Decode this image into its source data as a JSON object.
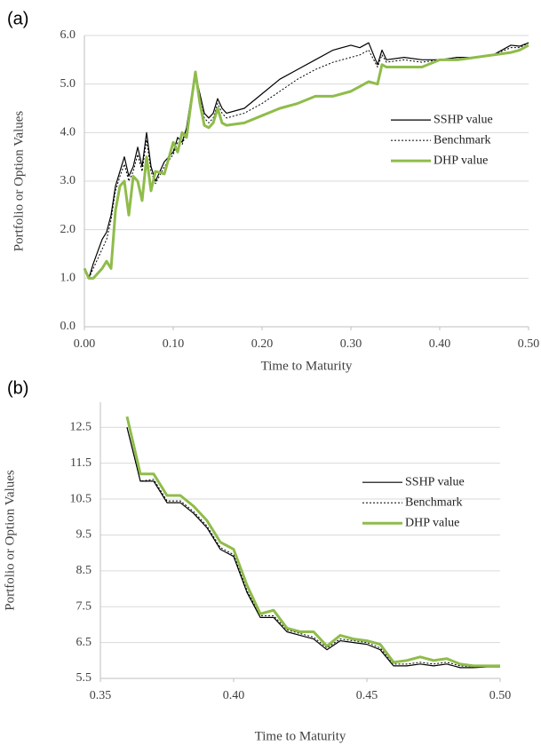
{
  "chart_data": [
    {
      "type": "line",
      "panel_label": "(a)",
      "x_label": "Time to Maturity",
      "y_label": "Portfolio or Option Values",
      "xlim": [
        0,
        0.5
      ],
      "ylim": [
        0,
        6
      ],
      "xticks": [
        {
          "value": 0,
          "label": "0.00"
        },
        {
          "value": 0.1,
          "label": "0.10"
        },
        {
          "value": 0.2,
          "label": "0.20"
        },
        {
          "value": 0.3,
          "label": "0.30"
        },
        {
          "value": 0.4,
          "label": "0.40"
        },
        {
          "value": 0.5,
          "label": "0.50"
        }
      ],
      "yticks": [
        {
          "value": 0,
          "label": "0.0"
        },
        {
          "value": 1,
          "label": "1.0"
        },
        {
          "value": 2,
          "label": "2.0"
        },
        {
          "value": 3,
          "label": "3.0"
        },
        {
          "value": 4,
          "label": "4.0"
        },
        {
          "value": 5,
          "label": "5.0"
        },
        {
          "value": 6,
          "label": "6.0"
        }
      ],
      "grid": true,
      "legend": "right",
      "x": [
        0,
        0.005,
        0.01,
        0.02,
        0.025,
        0.03,
        0.035,
        0.04,
        0.045,
        0.05,
        0.055,
        0.06,
        0.065,
        0.07,
        0.075,
        0.08,
        0.09,
        0.1,
        0.105,
        0.11,
        0.115,
        0.12,
        0.125,
        0.13,
        0.135,
        0.14,
        0.145,
        0.15,
        0.155,
        0.16,
        0.18,
        0.2,
        0.22,
        0.24,
        0.26,
        0.28,
        0.3,
        0.31,
        0.32,
        0.33,
        0.335,
        0.34,
        0.36,
        0.38,
        0.4,
        0.42,
        0.44,
        0.46,
        0.48,
        0.49,
        0.5
      ],
      "series": [
        {
          "name": "SSHP value",
          "color": "#000000",
          "line_width": 1.2,
          "dash": false,
          "values": [
            1.2,
            1.0,
            1.3,
            1.8,
            1.95,
            2.3,
            2.9,
            3.2,
            3.5,
            3.1,
            3.3,
            3.7,
            3.3,
            4.0,
            3.3,
            3.0,
            3.4,
            3.6,
            3.9,
            3.8,
            4.1,
            4.7,
            5.2,
            4.8,
            4.4,
            4.3,
            4.4,
            4.7,
            4.5,
            4.4,
            4.5,
            4.8,
            5.1,
            5.3,
            5.5,
            5.7,
            5.8,
            5.75,
            5.85,
            5.4,
            5.7,
            5.5,
            5.55,
            5.5,
            5.5,
            5.55,
            5.55,
            5.6,
            5.8,
            5.78,
            5.85
          ]
        },
        {
          "name": "Benchmark",
          "color": "#000000",
          "line_width": 1,
          "dash": true,
          "values": [
            1.2,
            1.0,
            1.2,
            1.6,
            1.8,
            2.2,
            2.8,
            3.1,
            3.35,
            3.0,
            3.2,
            3.55,
            3.2,
            3.85,
            3.2,
            2.95,
            3.3,
            3.55,
            3.8,
            3.75,
            4.0,
            4.6,
            5.15,
            4.7,
            4.3,
            4.2,
            4.3,
            4.6,
            4.4,
            4.3,
            4.4,
            4.6,
            4.85,
            5.1,
            5.3,
            5.45,
            5.55,
            5.6,
            5.7,
            5.35,
            5.6,
            5.45,
            5.5,
            5.45,
            5.5,
            5.55,
            5.55,
            5.6,
            5.75,
            5.75,
            5.85
          ]
        },
        {
          "name": "DHP value",
          "color": "#8fbc4a",
          "line_width": 3,
          "dash": false,
          "values": [
            1.2,
            1.0,
            1.0,
            1.2,
            1.35,
            1.2,
            2.4,
            2.9,
            3.0,
            2.3,
            3.1,
            3.0,
            2.6,
            3.5,
            2.8,
            3.2,
            3.15,
            3.8,
            3.6,
            4.0,
            3.9,
            4.6,
            5.25,
            4.6,
            4.15,
            4.1,
            4.2,
            4.5,
            4.2,
            4.15,
            4.2,
            4.35,
            4.5,
            4.6,
            4.75,
            4.75,
            4.85,
            4.95,
            5.05,
            5.0,
            5.4,
            5.35,
            5.35,
            5.35,
            5.5,
            5.5,
            5.55,
            5.6,
            5.65,
            5.7,
            5.8
          ]
        }
      ]
    },
    {
      "type": "line",
      "panel_label": "(b)",
      "x_label": "Time to Maturity",
      "y_label": "Portfolio or Option Values",
      "xlim": [
        0.35,
        0.5
      ],
      "ylim": [
        5.5,
        13.2
      ],
      "xticks": [
        0.35,
        {
          "value": 0.4,
          "label": "0.40"
        },
        0.45,
        {
          "value": 0.5,
          "label": "0.50"
        }
      ],
      "yticks": [
        5.5,
        6.5,
        7.5,
        8.5,
        9.5,
        10.5,
        11.5,
        12.5
      ],
      "grid": true,
      "legend": "right",
      "x": [
        0.36,
        0.365,
        0.37,
        0.375,
        0.38,
        0.385,
        0.39,
        0.395,
        0.4,
        0.405,
        0.41,
        0.415,
        0.42,
        0.425,
        0.43,
        0.435,
        0.44,
        0.445,
        0.45,
        0.455,
        0.46,
        0.465,
        0.47,
        0.475,
        0.48,
        0.485,
        0.49,
        0.495,
        0.5
      ],
      "series": [
        {
          "name": "SSHP value",
          "color": "#000000",
          "line_width": 1.2,
          "dash": false,
          "values": [
            12.5,
            11.0,
            11.0,
            10.4,
            10.4,
            10.1,
            9.7,
            9.1,
            8.9,
            7.9,
            7.2,
            7.2,
            6.8,
            6.7,
            6.6,
            6.3,
            6.55,
            6.5,
            6.45,
            6.3,
            5.85,
            5.85,
            5.9,
            5.85,
            5.9,
            5.8,
            5.8,
            5.82,
            5.82
          ]
        },
        {
          "name": "Benchmark",
          "color": "#000000",
          "line_width": 1,
          "dash": true,
          "values": [
            12.5,
            11.0,
            11.05,
            10.45,
            10.45,
            10.15,
            9.75,
            9.15,
            8.95,
            7.95,
            7.25,
            7.25,
            6.85,
            6.75,
            6.65,
            6.35,
            6.6,
            6.55,
            6.5,
            6.35,
            5.9,
            5.9,
            5.95,
            5.9,
            5.95,
            5.85,
            5.82,
            5.83,
            5.83
          ]
        },
        {
          "name": "DHP value",
          "color": "#8fbc4a",
          "line_width": 3,
          "dash": false,
          "values": [
            12.8,
            11.2,
            11.2,
            10.6,
            10.6,
            10.3,
            9.9,
            9.3,
            9.1,
            8.1,
            7.3,
            7.4,
            6.9,
            6.8,
            6.8,
            6.4,
            6.7,
            6.6,
            6.55,
            6.45,
            5.95,
            6.0,
            6.1,
            6.0,
            6.05,
            5.9,
            5.85,
            5.85,
            5.85
          ]
        }
      ]
    }
  ]
}
